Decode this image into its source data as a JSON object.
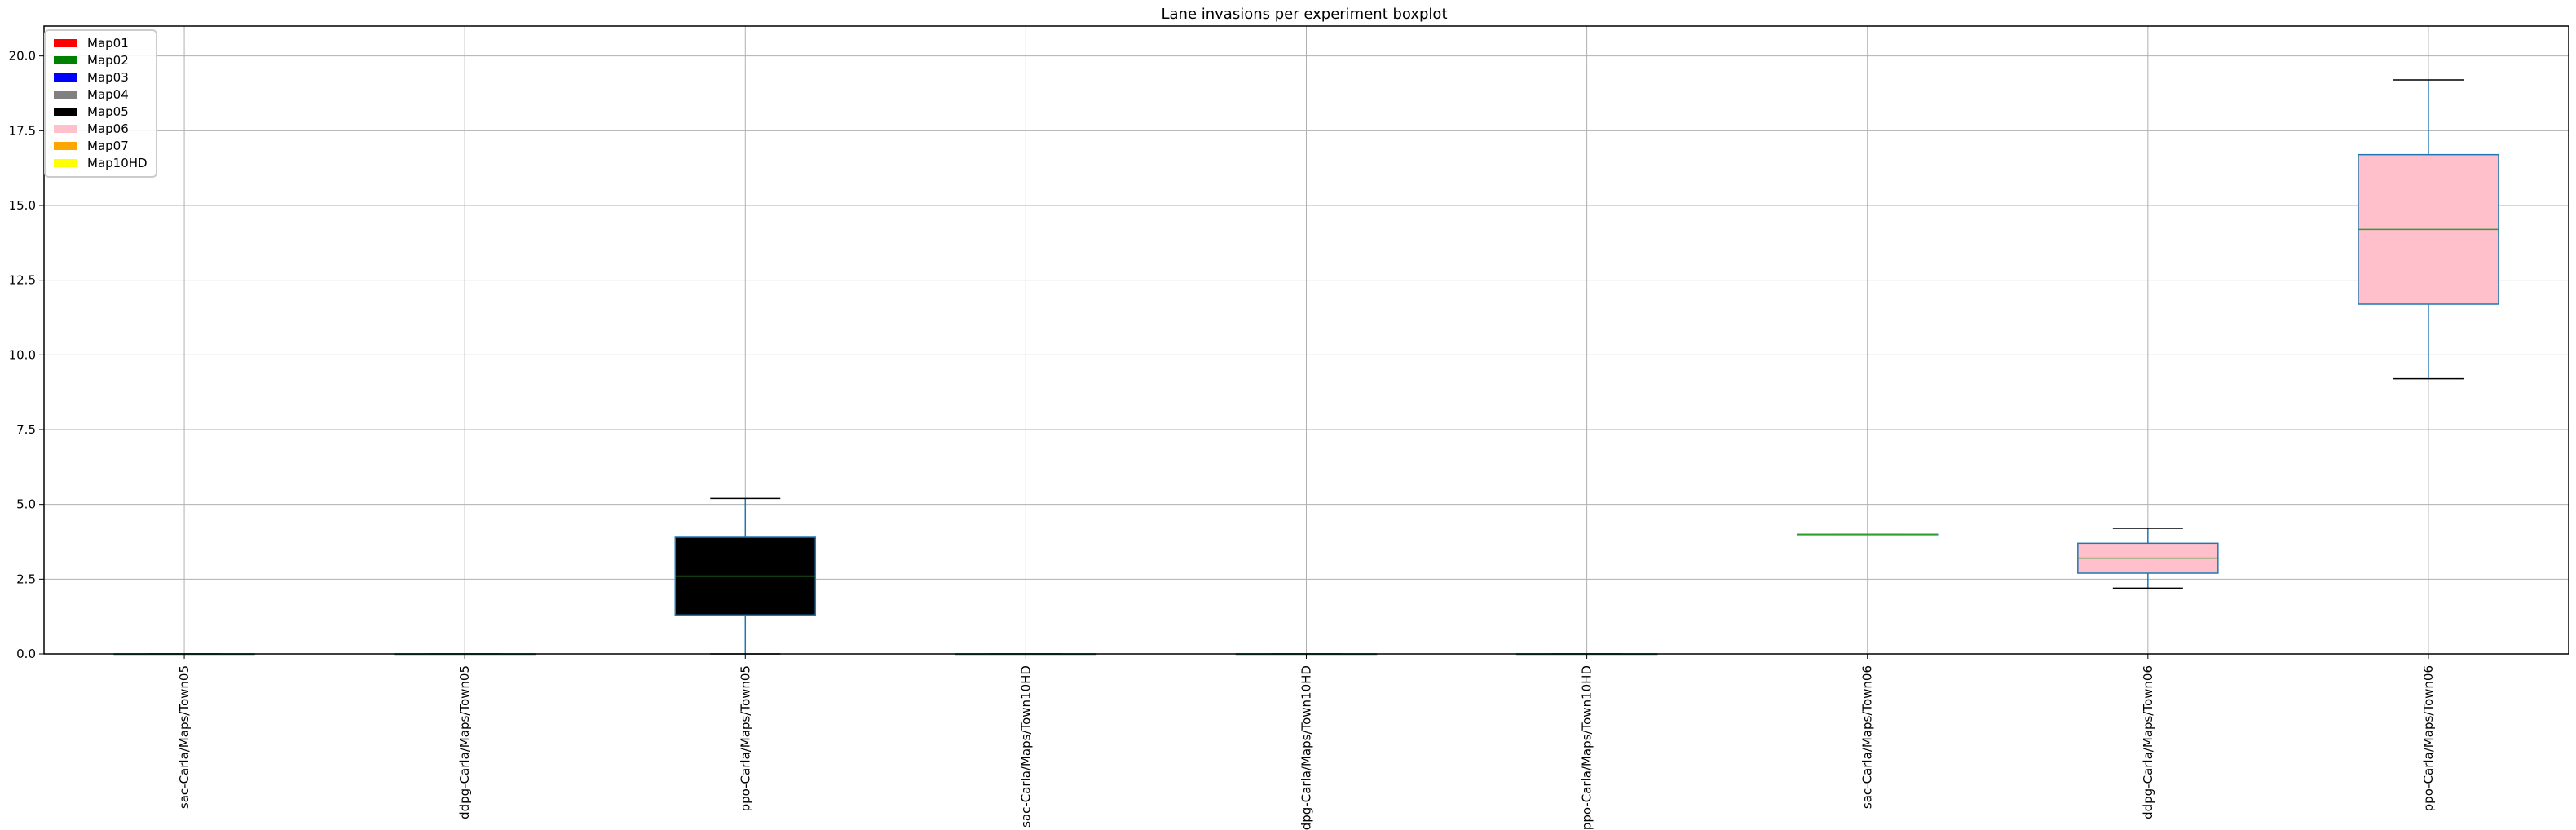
{
  "chart_data": {
    "type": "boxplot",
    "title": "Lane invasions per experiment boxplot",
    "xlabel": "",
    "ylabel": "",
    "ylim": [
      0,
      21
    ],
    "yticks": [
      "0.0",
      "2.5",
      "5.0",
      "7.5",
      "10.0",
      "12.5",
      "15.0",
      "17.5",
      "20.0"
    ],
    "ytick_values": [
      0,
      2.5,
      5,
      7.5,
      10,
      12.5,
      15,
      17.5,
      20
    ],
    "grid": true,
    "legend_position": "top-left",
    "legend": [
      {
        "label": "Map01",
        "color": "#ff0000"
      },
      {
        "label": "Map02",
        "color": "#008000"
      },
      {
        "label": "Map03",
        "color": "#0000ff"
      },
      {
        "label": "Map04",
        "color": "#808080"
      },
      {
        "label": "Map05",
        "color": "#000000"
      },
      {
        "label": "Map06",
        "color": "#ffc0cb"
      },
      {
        "label": "Map07",
        "color": "#ffa500"
      },
      {
        "label": "Map10HD",
        "color": "#ffff00"
      }
    ],
    "categories": [
      "sac-Carla/Maps/Town05",
      "ddpg-Carla/Maps/Town05",
      "ppo-Carla/Maps/Town05",
      "sac-Carla/Maps/Town10HD",
      "ddpg-Carla/Maps/Town10HD",
      "ppo-Carla/Maps/Town10HD",
      "sac-Carla/Maps/Town06",
      "ddpg-Carla/Maps/Town06",
      "ppo-Carla/Maps/Town06"
    ],
    "boxes": [
      {
        "whislo": 0,
        "q1": 0,
        "med": 0,
        "q3": 0,
        "whishi": 0,
        "fill": "#000000"
      },
      {
        "whislo": 0,
        "q1": 0,
        "med": 0,
        "q3": 0,
        "whishi": 0,
        "fill": "#000000"
      },
      {
        "whislo": 0,
        "q1": 1.3,
        "med": 2.6,
        "q3": 3.9,
        "whishi": 5.2,
        "fill": "#000000"
      },
      {
        "whislo": 0,
        "q1": 0,
        "med": 0,
        "q3": 0,
        "whishi": 0,
        "fill": "#ffff00"
      },
      {
        "whislo": 0,
        "q1": 0,
        "med": 0,
        "q3": 0,
        "whishi": 0,
        "fill": "#ffff00"
      },
      {
        "whislo": 0,
        "q1": 0,
        "med": 0,
        "q3": 0,
        "whishi": 0,
        "fill": "#ffff00"
      },
      {
        "whislo": 4,
        "q1": 4,
        "med": 4,
        "q3": 4,
        "whishi": 4,
        "fill": "#ffc0cb"
      },
      {
        "whislo": 2.2,
        "q1": 2.7,
        "med": 3.2,
        "q3": 3.7,
        "whishi": 4.2,
        "fill": "#ffc0cb"
      },
      {
        "whislo": 9.2,
        "q1": 11.7,
        "med": 14.2,
        "q3": 16.7,
        "whishi": 19.2,
        "fill": "#ffc0cb"
      }
    ],
    "box_edge_color": "#1f77b4",
    "median_color": "#2ca02c",
    "cap_color": "#000000"
  }
}
